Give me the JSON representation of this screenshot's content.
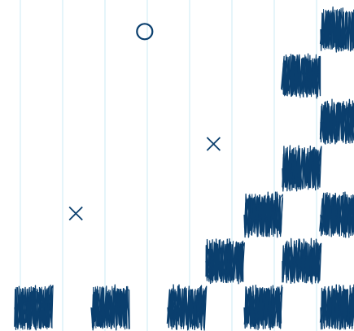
{
  "game": {
    "ink_color": "#0a3f6e",
    "grid_line_color": "#d4eef7",
    "background_color": "#ffffff",
    "scribble_blocks": [
      {
        "column": 0,
        "row": 6
      },
      {
        "column": 2,
        "row": 6
      },
      {
        "column": 4,
        "row": 6
      },
      {
        "column": 6,
        "row": 6
      },
      {
        "column": 8,
        "row": 6
      },
      {
        "column": 5,
        "row": 5
      },
      {
        "column": 7,
        "row": 5
      },
      {
        "column": 6,
        "row": 4
      },
      {
        "column": 8,
        "row": 4
      },
      {
        "column": 7,
        "row": 3
      },
      {
        "column": 8,
        "row": 2
      },
      {
        "column": 7,
        "row": 1
      },
      {
        "column": 8,
        "row": 0
      }
    ],
    "markers": [
      {
        "symbol": "circle",
        "name": "circle-marker",
        "column": 3.4,
        "row": 0.25
      },
      {
        "symbol": "cross",
        "name": "cross-marker",
        "column": 5.2,
        "row": 2.5
      },
      {
        "symbol": "cross",
        "name": "cross-marker",
        "column": 1.6,
        "row": 4.0
      }
    ]
  }
}
